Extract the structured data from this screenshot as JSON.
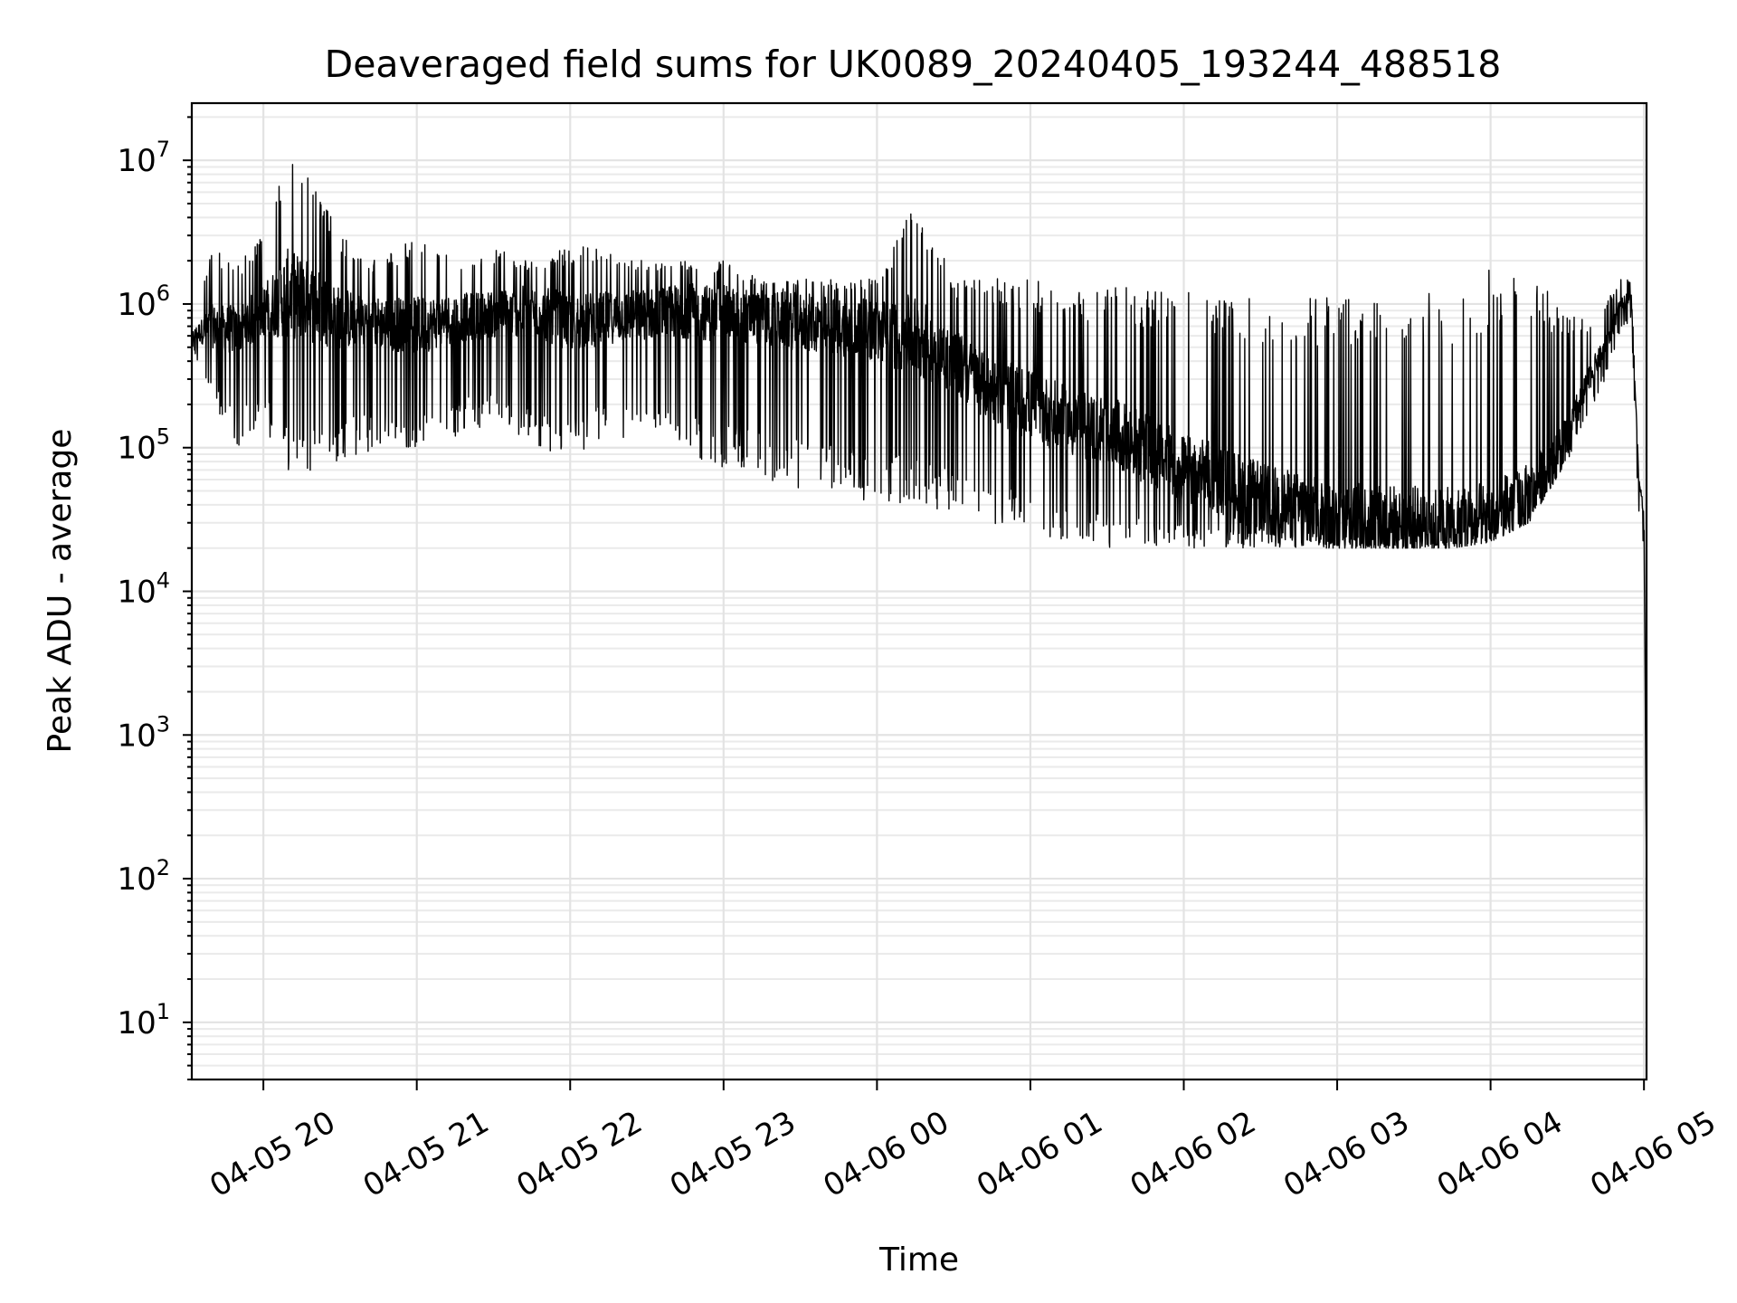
{
  "chart_data": {
    "type": "line",
    "title": "Deaveraged field sums for UK0089_20240405_193244_488518",
    "xlabel": "Time",
    "ylabel": "Peak ADU - average",
    "y_scale": "log",
    "ylim": [
      4,
      25000000
    ],
    "xlim": [
      "2024-04-05 19:32",
      "2024-04-06 05:01"
    ],
    "grid": "major and minor, light gray",
    "line_color": "#000000",
    "x_tick_labels": [
      "04-05 20",
      "04-05 21",
      "04-05 22",
      "04-05 23",
      "04-06 00",
      "04-06 01",
      "04-06 02",
      "04-06 03",
      "04-06 04",
      "04-06 05"
    ],
    "y_tick_labels": [
      {
        "base": "10",
        "exp": "1"
      },
      {
        "base": "10",
        "exp": "2"
      },
      {
        "base": "10",
        "exp": "3"
      },
      {
        "base": "10",
        "exp": "4"
      },
      {
        "base": "10",
        "exp": "5"
      },
      {
        "base": "10",
        "exp": "6"
      },
      {
        "base": "10",
        "exp": "7"
      }
    ],
    "series": [
      {
        "time": [
          "2024-04-05 19:32",
          "2024-04-05 19:40",
          "2024-04-05 19:50",
          "2024-04-05 20:00",
          "2024-04-05 20:10",
          "2024-04-05 20:20",
          "2024-04-05 20:30",
          "2024-04-05 20:45",
          "2024-04-05 21:00",
          "2024-04-05 21:15",
          "2024-04-05 21:30",
          "2024-04-05 21:45",
          "2024-04-05 22:00",
          "2024-04-05 22:15",
          "2024-04-05 22:30",
          "2024-04-05 22:45",
          "2024-04-05 23:00",
          "2024-04-05 23:15",
          "2024-04-05 23:30",
          "2024-04-05 23:45",
          "2024-04-06 00:00",
          "2024-04-06 00:15",
          "2024-04-06 00:30",
          "2024-04-06 00:45",
          "2024-04-06 01:00",
          "2024-04-06 01:15",
          "2024-04-06 01:30",
          "2024-04-06 01:45",
          "2024-04-06 02:00",
          "2024-04-06 02:15",
          "2024-04-06 02:30",
          "2024-04-06 02:45",
          "2024-04-06 03:00",
          "2024-04-06 03:15",
          "2024-04-06 03:30",
          "2024-04-06 03:45",
          "2024-04-06 04:00",
          "2024-04-06 04:15",
          "2024-04-06 04:30",
          "2024-04-06 04:40",
          "2024-04-06 04:45",
          "2024-04-06 04:50",
          "2024-04-06 04:55",
          "2024-04-06 04:58",
          "2024-04-06 05:00",
          "2024-04-06 05:01"
        ],
        "median": [
          600000,
          700000,
          650000,
          900000,
          1200000,
          1000000,
          800000,
          750000,
          700000,
          800000,
          850000,
          900000,
          750000,
          800000,
          850000,
          900000,
          850000,
          800000,
          750000,
          700000,
          650000,
          600000,
          400000,
          250000,
          200000,
          150000,
          130000,
          100000,
          70000,
          60000,
          45000,
          38000,
          33000,
          32000,
          31000,
          30000,
          32000,
          45000,
          120000,
          350000,
          500000,
          900000,
          1200000,
          60000,
          35000,
          90
        ],
        "low": [
          500000,
          200000,
          100000,
          150000,
          60000,
          70000,
          80000,
          100000,
          100000,
          120000,
          150000,
          100000,
          80000,
          120000,
          100000,
          80000,
          70000,
          60000,
          50000,
          50000,
          40000,
          40000,
          35000,
          30000,
          25000,
          22000,
          20000,
          20000,
          20000,
          20000,
          20000,
          20000,
          20000,
          20000,
          20000,
          20000,
          22000,
          30000,
          80000,
          200000,
          300000,
          600000,
          800000,
          30000,
          20000,
          90
        ],
        "high": [
          800000,
          2500000,
          2000000,
          3000000,
          12000000,
          7000000,
          3000000,
          2000000,
          3000000,
          2000000,
          2500000,
          2000000,
          2500000,
          2500000,
          2000000,
          2000000,
          2000000,
          1500000,
          1500000,
          1500000,
          1500000,
          5500000,
          1500000,
          1500000,
          1500000,
          1300000,
          1300000,
          1300000,
          1300000,
          1200000,
          1200000,
          1200000,
          1200000,
          1200000,
          1200000,
          1200000,
          1800000,
          1500000,
          1000000,
          800000,
          1000000,
          1500000,
          1500000,
          60000,
          40000,
          90
        ]
      }
    ]
  }
}
